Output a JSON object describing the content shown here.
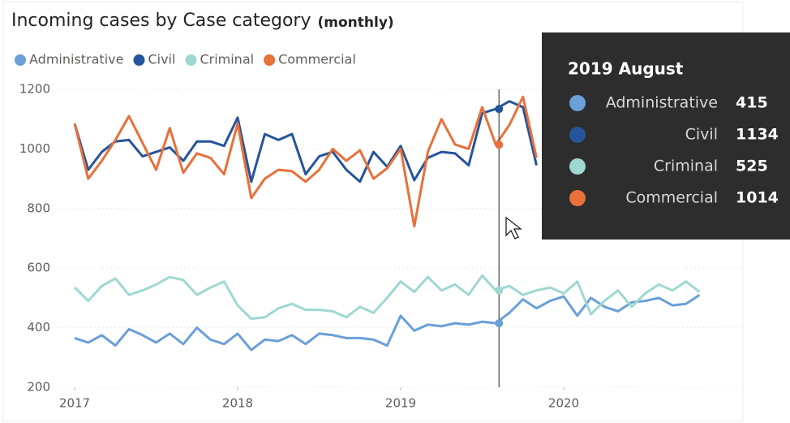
{
  "chart_data": {
    "type": "line",
    "title": "Incoming cases by Case category",
    "subtitle": "(monthly)",
    "xlim": [
      0,
      46
    ],
    "xticks": [
      {
        "value": 0,
        "label": "2017"
      },
      {
        "value": 12,
        "label": "2018"
      },
      {
        "value": 24,
        "label": "2019"
      },
      {
        "value": 36,
        "label": "2020"
      }
    ],
    "ylim": [
      200,
      1200
    ],
    "yticks": [
      200,
      400,
      600,
      800,
      1000,
      1200
    ],
    "grid": true,
    "legend": "top",
    "series": [
      {
        "name": "Administrative",
        "color": "#6a9fd8",
        "values": [
          365,
          350,
          375,
          340,
          395,
          375,
          350,
          380,
          345,
          400,
          360,
          345,
          380,
          325,
          360,
          355,
          375,
          345,
          380,
          375,
          365,
          365,
          360,
          340,
          440,
          390,
          410,
          405,
          415,
          410,
          420,
          415,
          450,
          495,
          465,
          490,
          505,
          440,
          500,
          470,
          455,
          485,
          490,
          500,
          475,
          480,
          510
        ]
      },
      {
        "name": "Civil",
        "color": "#26549b",
        "values": [
          1085,
          930,
          990,
          1025,
          1030,
          975,
          990,
          1005,
          960,
          1025,
          1025,
          1010,
          1105,
          890,
          1050,
          1030,
          1050,
          915,
          975,
          990,
          930,
          890,
          990,
          940,
          1010,
          895,
          970,
          990,
          985,
          945,
          1120,
          1134,
          1160,
          1140,
          945,
          null,
          null,
          null,
          null,
          null,
          null,
          null,
          null,
          null,
          null,
          null,
          null
        ]
      },
      {
        "name": "Criminal",
        "color": "#9fd8d2",
        "values": [
          535,
          490,
          540,
          565,
          510,
          525,
          545,
          570,
          560,
          510,
          535,
          555,
          475,
          430,
          435,
          465,
          480,
          460,
          460,
          455,
          435,
          470,
          450,
          500,
          555,
          520,
          570,
          525,
          545,
          510,
          575,
          525,
          540,
          510,
          525,
          535,
          515,
          555,
          445,
          490,
          525,
          470,
          515,
          545,
          525,
          555,
          520
        ]
      },
      {
        "name": "Commercial",
        "color": "#e8703a",
        "values": [
          1085,
          900,
          960,
          1030,
          1110,
          1020,
          930,
          1070,
          920,
          985,
          970,
          915,
          1085,
          835,
          900,
          930,
          925,
          890,
          930,
          1000,
          960,
          995,
          900,
          935,
          1000,
          740,
          990,
          1100,
          1015,
          1000,
          1140,
          1014,
          1080,
          1175,
          970,
          null,
          null,
          null,
          null,
          null,
          null,
          null,
          null,
          null,
          null,
          null,
          null
        ]
      }
    ],
    "tooltip": {
      "title": "2019 August"
    }
  }
}
